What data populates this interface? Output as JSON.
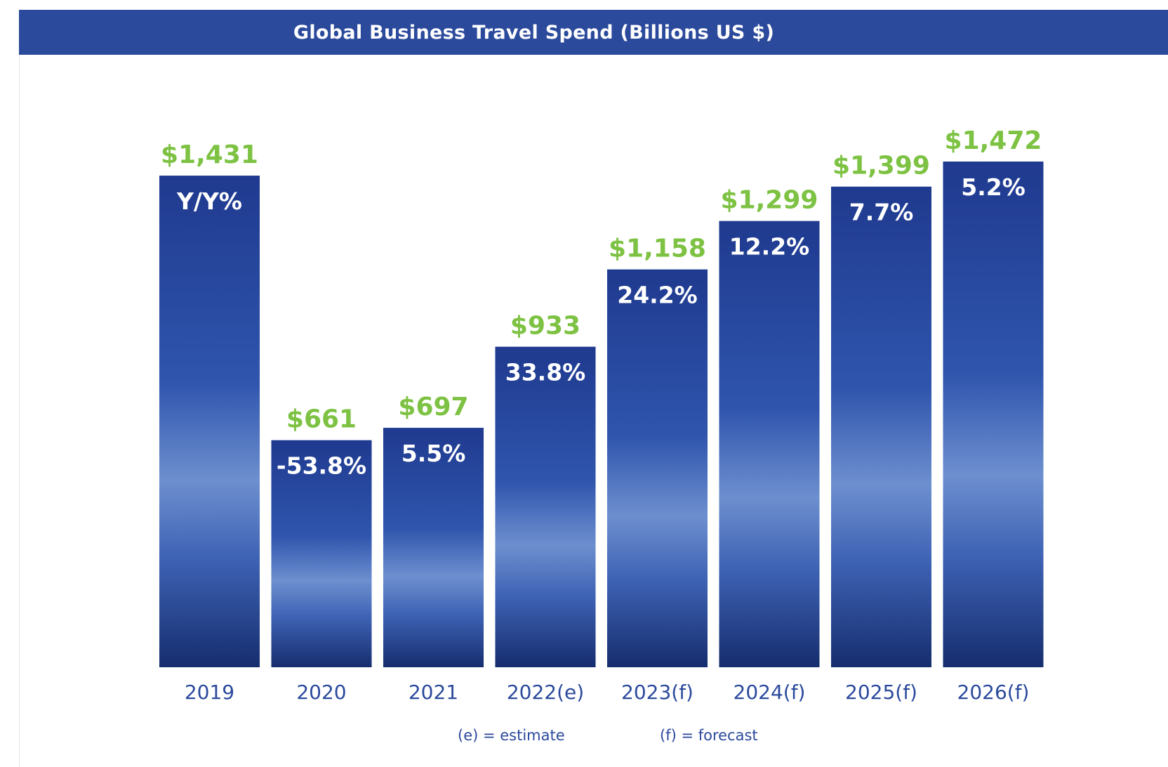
{
  "title": "Global Business Travel Spend (Billions US $)",
  "chart_data": {
    "type": "bar",
    "title": "Global Business Travel Spend (Billions US $)",
    "categories": [
      "2019",
      "2020",
      "2021",
      "2022(e)",
      "2023(f)",
      "2024(f)",
      "2025(f)",
      "2026(f)"
    ],
    "values": [
      1431,
      661,
      697,
      933,
      1158,
      1299,
      1399,
      1472
    ],
    "value_labels": [
      "$1,431",
      "$661",
      "$697",
      "$933",
      "$1,158",
      "$1,299",
      "$1,399",
      "$1,472"
    ],
    "yoy_labels": [
      "Y/Y%",
      "-53.8%",
      "5.5%",
      "33.8%",
      "24.2%",
      "12.2%",
      "7.7%",
      "5.2%"
    ],
    "xlabel": "",
    "ylabel": "",
    "ylim": [
      0,
      1472
    ],
    "grid": false,
    "colors": {
      "banner": "#2b4a9c",
      "bar_top": "#1f3a8f",
      "bar_mid": "#5f7fc4",
      "bar_bottom": "#162d6e",
      "value_label": "#7dc242",
      "yoy_label": "#ffffff",
      "category_label": "#2b4a9c"
    }
  },
  "notes": {
    "estimate": "(e) = estimate",
    "forecast": "(f) = forecast"
  }
}
